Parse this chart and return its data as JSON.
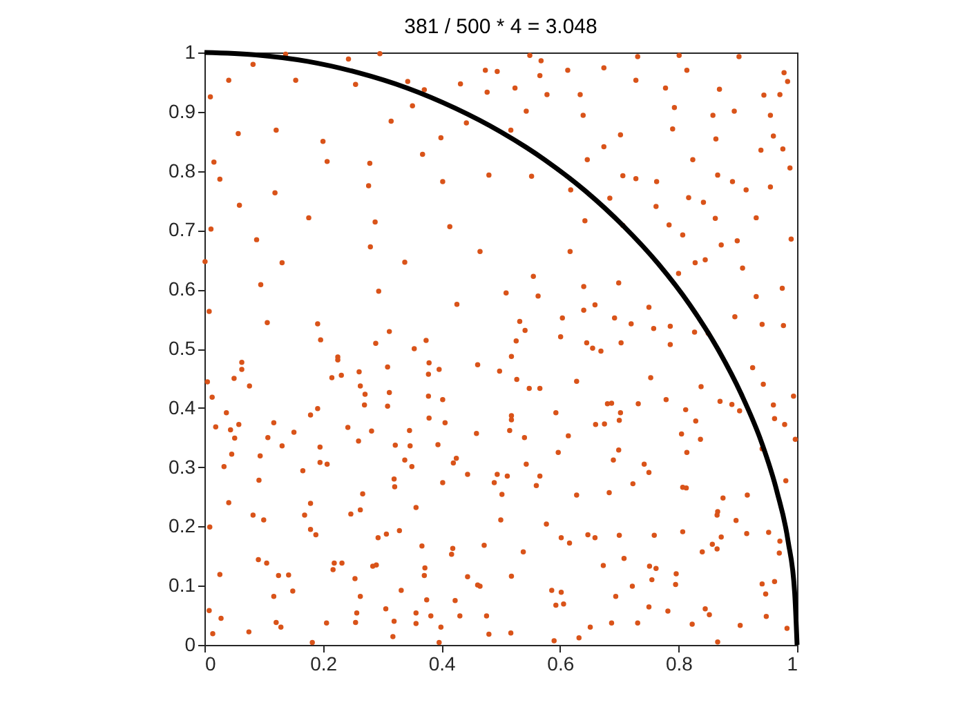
{
  "chart_data": {
    "type": "scatter",
    "title": "381 / 500 * 4 = 3.048",
    "xlim": [
      0,
      1
    ],
    "ylim": [
      0,
      1
    ],
    "xticks": [
      0,
      0.2,
      0.4,
      0.6,
      0.8,
      1
    ],
    "yticks": [
      0,
      0.1,
      0.2,
      0.3,
      0.4,
      0.5,
      0.6,
      0.7,
      0.8,
      0.9,
      1
    ],
    "grid": false,
    "series": [
      {
        "color": "#d95319",
        "marker": "circle",
        "x": [
          0.137,
          0.082,
          0.243,
          0.296,
          0.041,
          0.154,
          0.01,
          0.255,
          0.343,
          0.371,
          0.351,
          0.315,
          0.432,
          0.474,
          0.477,
          0.442,
          0.057,
          0.121,
          0.2,
          0.399,
          0.016,
          0.207,
          0.279,
          0.368,
          0.026,
          0.119,
          0.277,
          0.402,
          0.48,
          0.059,
          0.011,
          0.176,
          0.288,
          0.414,
          0.088,
          0.28,
          0.465,
          0.001,
          0.131,
          0.338,
          0.095,
          0.294,
          0.426,
          0.008,
          0.106,
          0.191,
          0.312,
          0.354,
          0.549,
          0.568,
          0.731,
          0.801,
          0.902,
          0.494,
          0.566,
          0.613,
          0.674,
          0.728,
          0.814,
          0.978,
          0.984,
          0.524,
          0.578,
          0.634,
          0.778,
          0.869,
          0.944,
          0.971,
          0.543,
          0.639,
          0.793,
          0.858,
          0.894,
          0.955,
          0.79,
          0.702,
          0.863,
          0.96,
          0.517,
          0.674,
          0.646,
          0.824,
          0.939,
          0.976,
          0.988,
          0.552,
          0.706,
          0.728,
          0.763,
          0.866,
          0.891,
          0.914,
          0.955,
          0.618,
          0.684,
          0.817,
          0.842,
          0.762,
          0.642,
          0.706,
          0.784,
          0.807,
          0.862,
          0.931,
          0.99,
          0.617,
          0.872,
          0.899,
          0.828,
          0.845,
          0.908,
          0.975,
          0.555,
          0.563,
          0.509,
          0.64,
          0.699,
          0.8,
          0.931,
          0.659,
          0.75,
          0.64,
          0.604,
          0.692,
          0.895,
          0.941,
          0.977,
          0.532,
          0.72,
          0.758,
          0.786,
          0.541,
          0.601,
          0.827,
          0.85,
          0.526,
          0.645,
          0.703,
          0.786,
          0.655,
          0.669,
          0.196,
          0.289,
          0.374,
          0.063,
          0.063,
          0.225,
          0.225,
          0.231,
          0.215,
          0.05,
          0.005,
          0.076,
          0.261,
          0.309,
          0.379,
          0.396,
          0.378,
          0.461,
          0.498,
          0.013,
          0.263,
          0.271,
          0.312,
          0.378,
          0.402,
          0.037,
          0.191,
          0.179,
          0.27,
          0.309,
          0.019,
          0.044,
          0.058,
          0.117,
          0.051,
          0.107,
          0.151,
          0.242,
          0.282,
          0.346,
          0.379,
          0.406,
          0.459,
          0.131,
          0.195,
          0.26,
          0.322,
          0.347,
          0.394,
          0.046,
          0.094,
          0.338,
          0.425,
          0.033,
          0.166,
          0.195,
          0.207,
          0.35,
          0.42,
          0.092,
          0.32,
          0.321,
          0.402,
          0.444,
          0.489,
          0.494,
          0.502,
          0.041,
          0.267,
          0.179,
          0.082,
          0.1,
          0.169,
          0.247,
          0.263,
          0.357,
          0.009,
          0.179,
          0.188,
          0.293,
          0.307,
          0.329,
          0.5,
          0.367,
          0.419,
          0.417,
          0.472,
          0.091,
          0.105,
          0.125,
          0.142,
          0.217,
          0.219,
          0.232,
          0.254,
          0.284,
          0.29,
          0.372,
          0.371,
          0.444,
          0.461,
          0.465,
          0.026,
          0.149,
          0.117,
          0.332,
          0.263,
          0.375,
          0.423,
          0.008,
          0.028,
          0.121,
          0.129,
          0.075,
          0.014,
          0.206,
          0.255,
          0.257,
          0.306,
          0.32,
          0.357,
          0.357,
          0.382,
          0.399,
          0.431,
          0.476,
          0.48,
          0.318,
          0.182,
          0.396,
          0.518,
          0.527,
          0.548,
          0.566,
          0.628,
          0.753,
          0.838,
          0.925,
          0.943,
          0.994,
          0.593,
          0.518,
          0.518,
          0.68,
          0.687,
          0.702,
          0.732,
          0.779,
          0.812,
          0.829,
          0.87,
          0.89,
          0.903,
          0.96,
          0.962,
          0.979,
          0.997,
          0.515,
          0.54,
          0.614,
          0.66,
          0.675,
          0.7,
          0.805,
          0.837,
          0.597,
          0.699,
          0.69,
          0.814,
          0.941,
          0.511,
          0.543,
          0.566,
          0.56,
          0.742,
          0.75,
          0.723,
          0.807,
          0.813,
          0.981,
          0.628,
          0.683,
          0.875,
          0.916,
          0.866,
          0.865,
          0.577,
          0.897,
          0.602,
          0.616,
          0.647,
          0.659,
          0.7,
          0.759,
          0.807,
          0.872,
          0.915,
          0.952,
          0.857,
          0.865,
          0.84,
          0.971,
          0.97,
          0.538,
          0.673,
          0.708,
          0.751,
          0.762,
          0.518,
          0.755,
          0.722,
          0.796,
          0.795,
          0.962,
          0.586,
          0.602,
          0.694,
          0.941,
          0.947,
          0.593,
          0.606,
          0.75,
          0.782,
          0.845,
          0.852,
          0.948,
          0.651,
          0.687,
          0.731,
          0.823,
          0.904,
          0.983,
          0.517,
          0.59,
          0.632,
          0.866
        ],
        "values": [
          0.997,
          0.98,
          0.989,
          0.998,
          0.953,
          0.953,
          0.925,
          0.946,
          0.951,
          0.937,
          0.91,
          0.884,
          0.947,
          0.97,
          0.933,
          0.881,
          0.863,
          0.869,
          0.85,
          0.856,
          0.815,
          0.816,
          0.813,
          0.828,
          0.786,
          0.763,
          0.775,
          0.782,
          0.793,
          0.742,
          0.702,
          0.721,
          0.714,
          0.706,
          0.684,
          0.672,
          0.664,
          0.647,
          0.645,
          0.646,
          0.608,
          0.597,
          0.575,
          0.563,
          0.544,
          0.542,
          0.529,
          0.5,
          0.995,
          0.986,
          0.993,
          0.995,
          0.993,
          0.968,
          0.961,
          0.97,
          0.974,
          0.953,
          0.97,
          0.966,
          0.951,
          0.94,
          0.929,
          0.929,
          0.94,
          0.938,
          0.928,
          0.929,
          0.901,
          0.894,
          0.907,
          0.894,
          0.901,
          0.894,
          0.871,
          0.861,
          0.854,
          0.859,
          0.869,
          0.841,
          0.819,
          0.819,
          0.835,
          0.837,
          0.805,
          0.791,
          0.792,
          0.787,
          0.782,
          0.793,
          0.782,
          0.768,
          0.773,
          0.768,
          0.754,
          0.755,
          0.747,
          0.74,
          0.716,
          0.708,
          0.709,
          0.692,
          0.72,
          0.721,
          0.685,
          0.664,
          0.675,
          0.682,
          0.645,
          0.65,
          0.636,
          0.602,
          0.622,
          0.589,
          0.594,
          0.605,
          0.611,
          0.627,
          0.588,
          0.574,
          0.57,
          0.565,
          0.552,
          0.552,
          0.554,
          0.541,
          0.539,
          0.546,
          0.542,
          0.534,
          0.538,
          0.531,
          0.52,
          0.528,
          0.526,
          0.513,
          0.51,
          0.51,
          0.507,
          0.501,
          0.496,
          0.515,
          0.509,
          0.514,
          0.477,
          0.465,
          0.486,
          0.481,
          0.455,
          0.451,
          0.45,
          0.444,
          0.437,
          0.461,
          0.469,
          0.476,
          0.465,
          0.457,
          0.473,
          0.462,
          0.418,
          0.437,
          0.423,
          0.426,
          0.42,
          0.414,
          0.392,
          0.399,
          0.388,
          0.405,
          0.403,
          0.368,
          0.363,
          0.372,
          0.375,
          0.349,
          0.35,
          0.359,
          0.367,
          0.361,
          0.362,
          0.383,
          0.375,
          0.357,
          0.336,
          0.334,
          0.344,
          0.337,
          0.336,
          0.338,
          0.322,
          0.319,
          0.312,
          0.315,
          0.301,
          0.294,
          0.308,
          0.305,
          0.301,
          0.307,
          0.278,
          0.28,
          0.267,
          0.274,
          0.288,
          0.274,
          0.288,
          0.254,
          0.24,
          0.255,
          0.239,
          0.219,
          0.211,
          0.219,
          0.221,
          0.228,
          0.232,
          0.199,
          0.195,
          0.186,
          0.181,
          0.187,
          0.193,
          0.211,
          0.167,
          0.163,
          0.153,
          0.168,
          0.144,
          0.138,
          0.117,
          0.118,
          0.127,
          0.138,
          0.138,
          0.112,
          0.133,
          0.135,
          0.13,
          0.117,
          0.115,
          0.101,
          0.099,
          0.119,
          0.091,
          0.082,
          0.092,
          0.082,
          0.076,
          0.075,
          0.058,
          0.045,
          0.038,
          0.03,
          0.022,
          0.019,
          0.037,
          0.038,
          0.054,
          0.061,
          0.04,
          0.054,
          0.036,
          0.049,
          0.03,
          0.049,
          0.049,
          0.018,
          0.014,
          0.004,
          0.004,
          0.487,
          0.448,
          0.433,
          0.433,
          0.445,
          0.451,
          0.436,
          0.468,
          0.44,
          0.42,
          0.392,
          0.387,
          0.38,
          0.407,
          0.408,
          0.392,
          0.407,
          0.414,
          0.397,
          0.378,
          0.411,
          0.406,
          0.395,
          0.405,
          0.382,
          0.372,
          0.347,
          0.362,
          0.35,
          0.353,
          0.372,
          0.373,
          0.379,
          0.356,
          0.347,
          0.325,
          0.329,
          0.312,
          0.325,
          0.331,
          0.285,
          0.305,
          0.285,
          0.269,
          0.305,
          0.291,
          0.272,
          0.266,
          0.265,
          0.277,
          0.253,
          0.257,
          0.248,
          0.253,
          0.225,
          0.219,
          0.204,
          0.21,
          0.181,
          0.172,
          0.186,
          0.181,
          0.185,
          0.185,
          0.191,
          0.182,
          0.188,
          0.19,
          0.17,
          0.162,
          0.157,
          0.175,
          0.155,
          0.157,
          0.134,
          0.146,
          0.133,
          0.129,
          0.116,
          0.11,
          0.099,
          0.12,
          0.102,
          0.107,
          0.092,
          0.089,
          0.082,
          0.103,
          0.086,
          0.067,
          0.069,
          0.064,
          0.057,
          0.061,
          0.051,
          0.048,
          0.03,
          0.037,
          0.037,
          0.035,
          0.033,
          0.028,
          0.02,
          0.007,
          0.012,
          0.005
        ]
      },
      {
        "type": "line",
        "color": "#000000",
        "marker": "none",
        "line_style": "solid",
        "x": [
          1,
          0.996,
          0.985,
          0.966,
          0.94,
          0.906,
          0.866,
          0.819,
          0.766,
          0.707,
          0.643,
          0.574,
          0.5,
          0.423,
          0.342,
          0.259,
          0.174,
          0.087,
          0
        ],
        "values": [
          0,
          0.087,
          0.174,
          0.259,
          0.342,
          0.423,
          0.5,
          0.574,
          0.643,
          0.707,
          0.766,
          0.819,
          0.866,
          0.906,
          0.94,
          0.966,
          0.985,
          0.996,
          1
        ]
      }
    ]
  }
}
